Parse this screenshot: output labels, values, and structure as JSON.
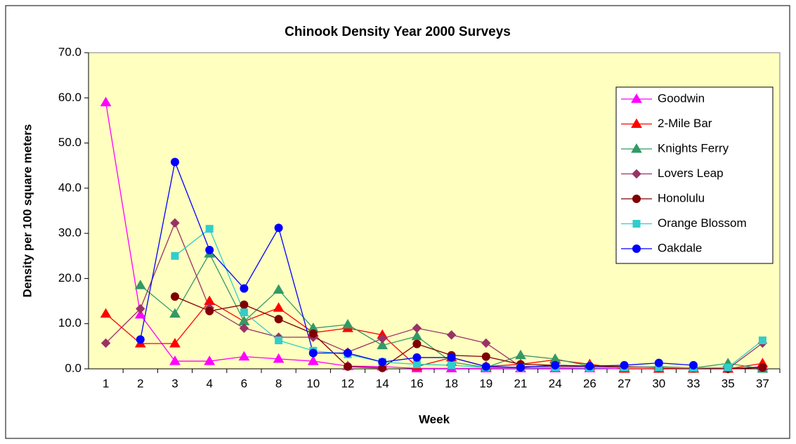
{
  "chart_data": {
    "type": "line",
    "title": "Chinook Density Year 2000 Surveys",
    "x_label": "Week",
    "y_label": "Density per 100 square meters",
    "categories": [
      "1",
      "2",
      "3",
      "4",
      "6",
      "8",
      "10",
      "12",
      "14",
      "16",
      "18",
      "19",
      "21",
      "24",
      "26",
      "27",
      "30",
      "33",
      "35",
      "37"
    ],
    "ylim": [
      0,
      70
    ],
    "yticks": [
      {
        "value": 0,
        "label": "0.0"
      },
      {
        "value": 10,
        "label": "10.0"
      },
      {
        "value": 20,
        "label": "20.0"
      },
      {
        "value": 30,
        "label": "30.0"
      },
      {
        "value": 40,
        "label": "40.0"
      },
      {
        "value": 50,
        "label": "50.0"
      },
      {
        "value": 60,
        "label": "60.0"
      },
      {
        "value": 70,
        "label": "70.0"
      }
    ],
    "grid": false,
    "legend": "right",
    "series": [
      {
        "name": "Goodwin",
        "color": "#ff00ff",
        "marker": "triangle",
        "values": [
          59,
          12,
          1.7,
          1.7,
          2.7,
          2.2,
          1.7,
          0.6,
          0.5,
          0.1,
          0.1,
          0.1,
          0.1,
          0.1,
          0.1,
          0,
          0,
          0,
          0,
          0.5
        ]
      },
      {
        "name": "2-Mile Bar",
        "color": "#ff0000",
        "marker": "triangle",
        "values": [
          12.2,
          5.6,
          5.6,
          15,
          10.5,
          13.5,
          8,
          9,
          7.5,
          0.5,
          2.5,
          0.5,
          1,
          2,
          1,
          0,
          0,
          0,
          0,
          1.2
        ]
      },
      {
        "name": "Knights Ferry",
        "color": "#339966",
        "marker": "triangle",
        "values": [
          null,
          18.5,
          12.2,
          25.5,
          10.5,
          17.5,
          9,
          9.8,
          5.2,
          7.2,
          1.5,
          0.3,
          3,
          2.2,
          0.6,
          0.3,
          0.5,
          0.2,
          1.2,
          0
        ]
      },
      {
        "name": "Lovers Leap",
        "color": "#993366",
        "marker": "diamond",
        "values": [
          5.7,
          13.3,
          32.3,
          13.5,
          9,
          7,
          7,
          3.7,
          6.7,
          9,
          7.5,
          5.7,
          0.5,
          0.5,
          0.5,
          0.5,
          0.3,
          0.2,
          0,
          5.7
        ]
      },
      {
        "name": "Honolulu",
        "color": "#800000",
        "marker": "circle",
        "values": [
          null,
          null,
          16,
          12.8,
          14.2,
          11,
          7.8,
          0.5,
          0.2,
          5.5,
          3,
          2.7,
          1,
          0.8,
          0.5,
          0.5,
          0.2,
          0.1,
          0,
          0.3
        ]
      },
      {
        "name": "Orange Blossom",
        "color": "#33cccc",
        "marker": "square",
        "values": [
          null,
          null,
          25,
          31,
          12.5,
          6.3,
          4,
          3.2,
          1.5,
          1,
          0.8,
          0.3,
          0.2,
          0.3,
          0.2,
          0.3,
          0.3,
          0.2,
          0.3,
          6.3
        ]
      },
      {
        "name": "Oakdale",
        "color": "#0000ff",
        "marker": "circle",
        "values": [
          null,
          6.5,
          45.8,
          26.3,
          17.8,
          31.2,
          3.5,
          3.5,
          1.5,
          2.5,
          2.5,
          0.5,
          0.3,
          0.8,
          0.6,
          0.8,
          1.3,
          0.8,
          null,
          null
        ]
      }
    ]
  }
}
